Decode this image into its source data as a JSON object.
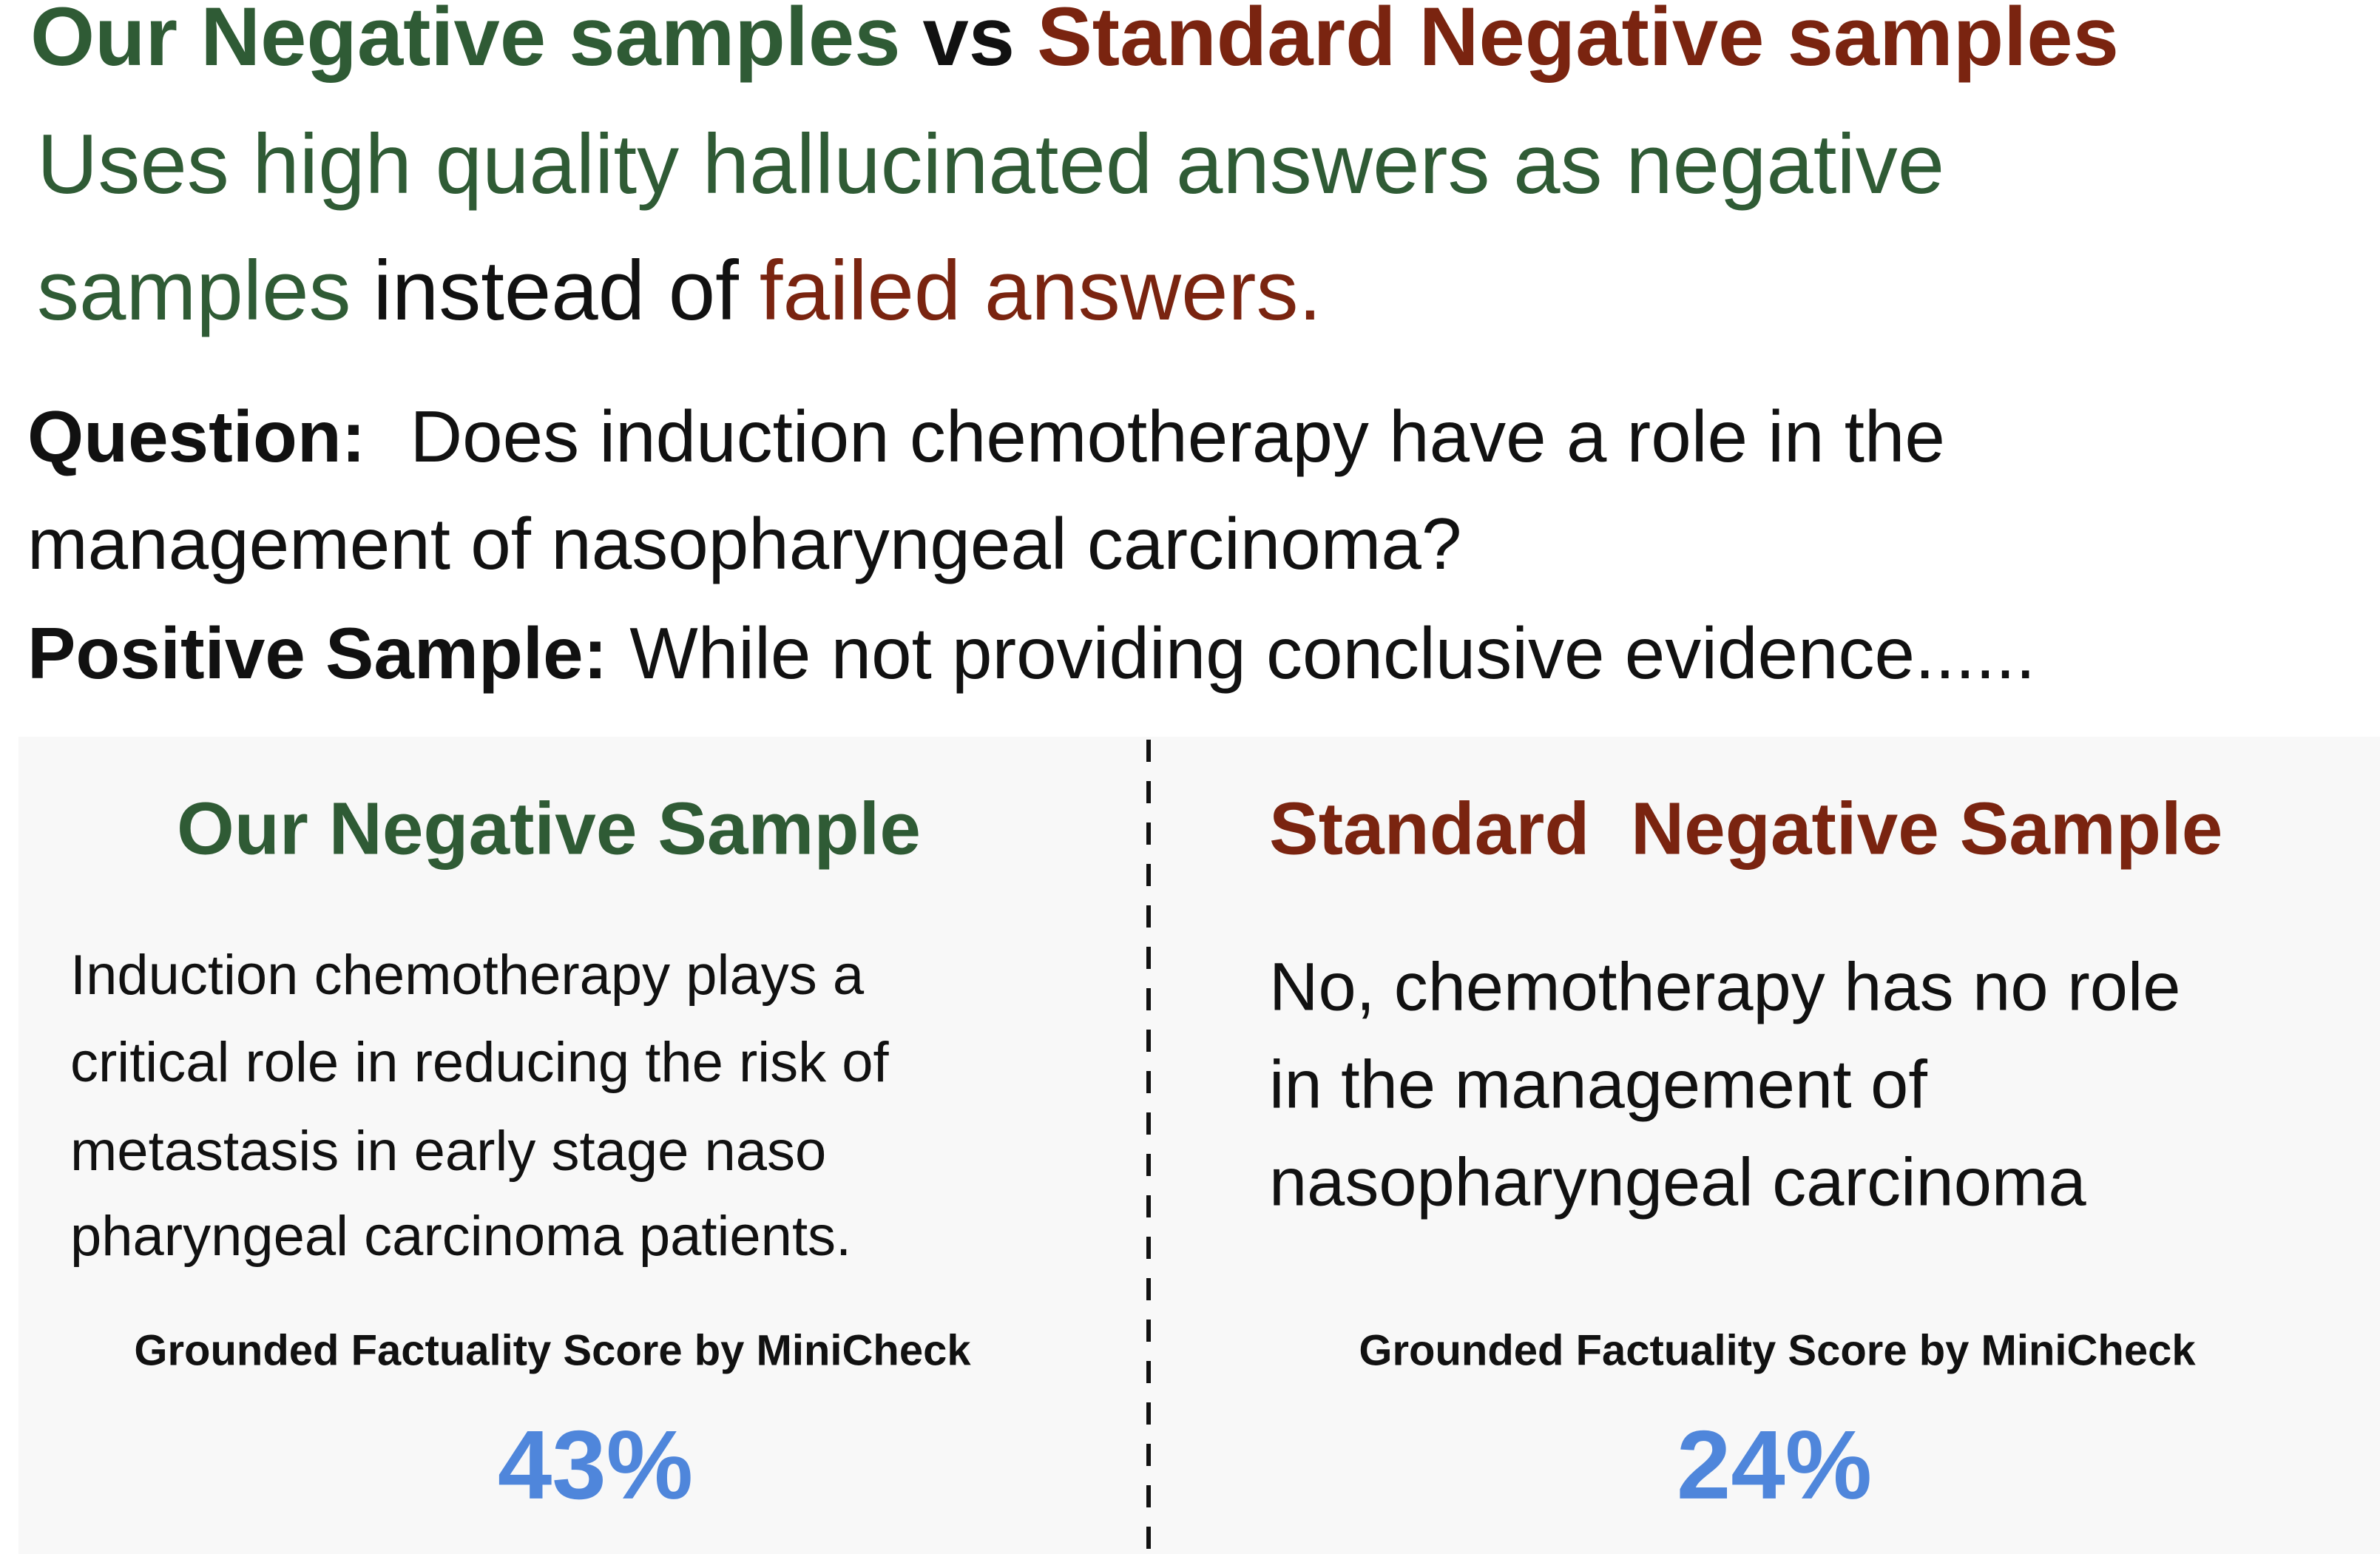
{
  "title": {
    "ours": "Our Negative samples",
    "vs": "vs",
    "standard": "Standard Negative samples"
  },
  "subtitle": {
    "ours_lines": [
      "Uses high quality hallucinated answers as negative",
      "samples"
    ],
    "middle": "instead of",
    "standard": "failed answers."
  },
  "question": {
    "label": "Question:",
    "lines": [
      "Does induction chemotherapy have a role in the",
      "management of nasopharyngeal carcinoma?"
    ]
  },
  "positive": {
    "label": "Positive Sample:",
    "text": "While not providing conclusive evidence......"
  },
  "panels": [
    {
      "heading": "Our Negative Sample",
      "lines": [
        "Induction chemotherapy plays a",
        "critical role in reducing the risk of",
        "metastasis in early stage naso",
        "pharyngeal carcinoma patients."
      ],
      "score_label": "Grounded Factuality Score by MiniCheck",
      "score": "43%"
    },
    {
      "heading": "Standard  Negative Sample",
      "lines": [
        "No, chemotherapy has no role",
        "in the management of",
        "nasopharyngeal carcinoma"
      ],
      "score_label": "Grounded Factuality Score by MiniCheck",
      "score": "24%"
    }
  ]
}
